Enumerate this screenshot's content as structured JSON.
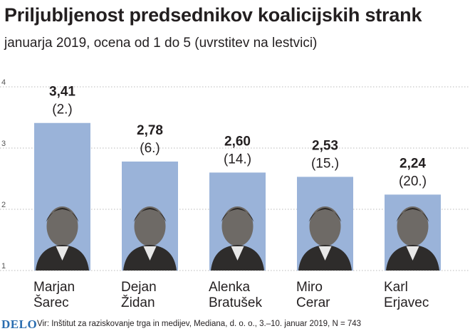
{
  "title": "Priljubljenost predsednikov koalicijskih strank",
  "subtitle": "januarja 2019, ocena od 1 do 5 (uvrstitev na lestvici)",
  "logo": "DELO",
  "source": "Vir: Inštitut za raziskovanje trga in medijev, Mediana, d. o. o., 3.–10. januar 2019, N = 743",
  "colors": {
    "bar": "#9ab3d9",
    "grid": "#b8b8b8",
    "text": "#231f20"
  },
  "chart_data": {
    "type": "bar",
    "title": "Priljubljenost predsednikov koalicijskih strank",
    "subtitle": "januarja 2019, ocena od 1 do 5 (uvrstitev na lestvici)",
    "xlabel": "",
    "ylabel": "",
    "ylim": [
      1,
      4
    ],
    "yticks": [
      "1",
      "2",
      "3",
      "4"
    ],
    "grid": true,
    "categories": [
      [
        "Marjan",
        "Šarec"
      ],
      [
        "Dejan",
        "Židan"
      ],
      [
        "Alenka",
        "Bratušek"
      ],
      [
        "Miro",
        "Cerar"
      ],
      [
        "Karl",
        "Erjavec"
      ]
    ],
    "values": [
      3.41,
      2.78,
      2.6,
      2.53,
      2.24
    ],
    "value_labels": [
      "3,41",
      "2,78",
      "2,60",
      "2,53",
      "2,24"
    ],
    "ranks": [
      "(2.)",
      "(6.)",
      "(14.)",
      "(15.)",
      "(20.)"
    ]
  }
}
